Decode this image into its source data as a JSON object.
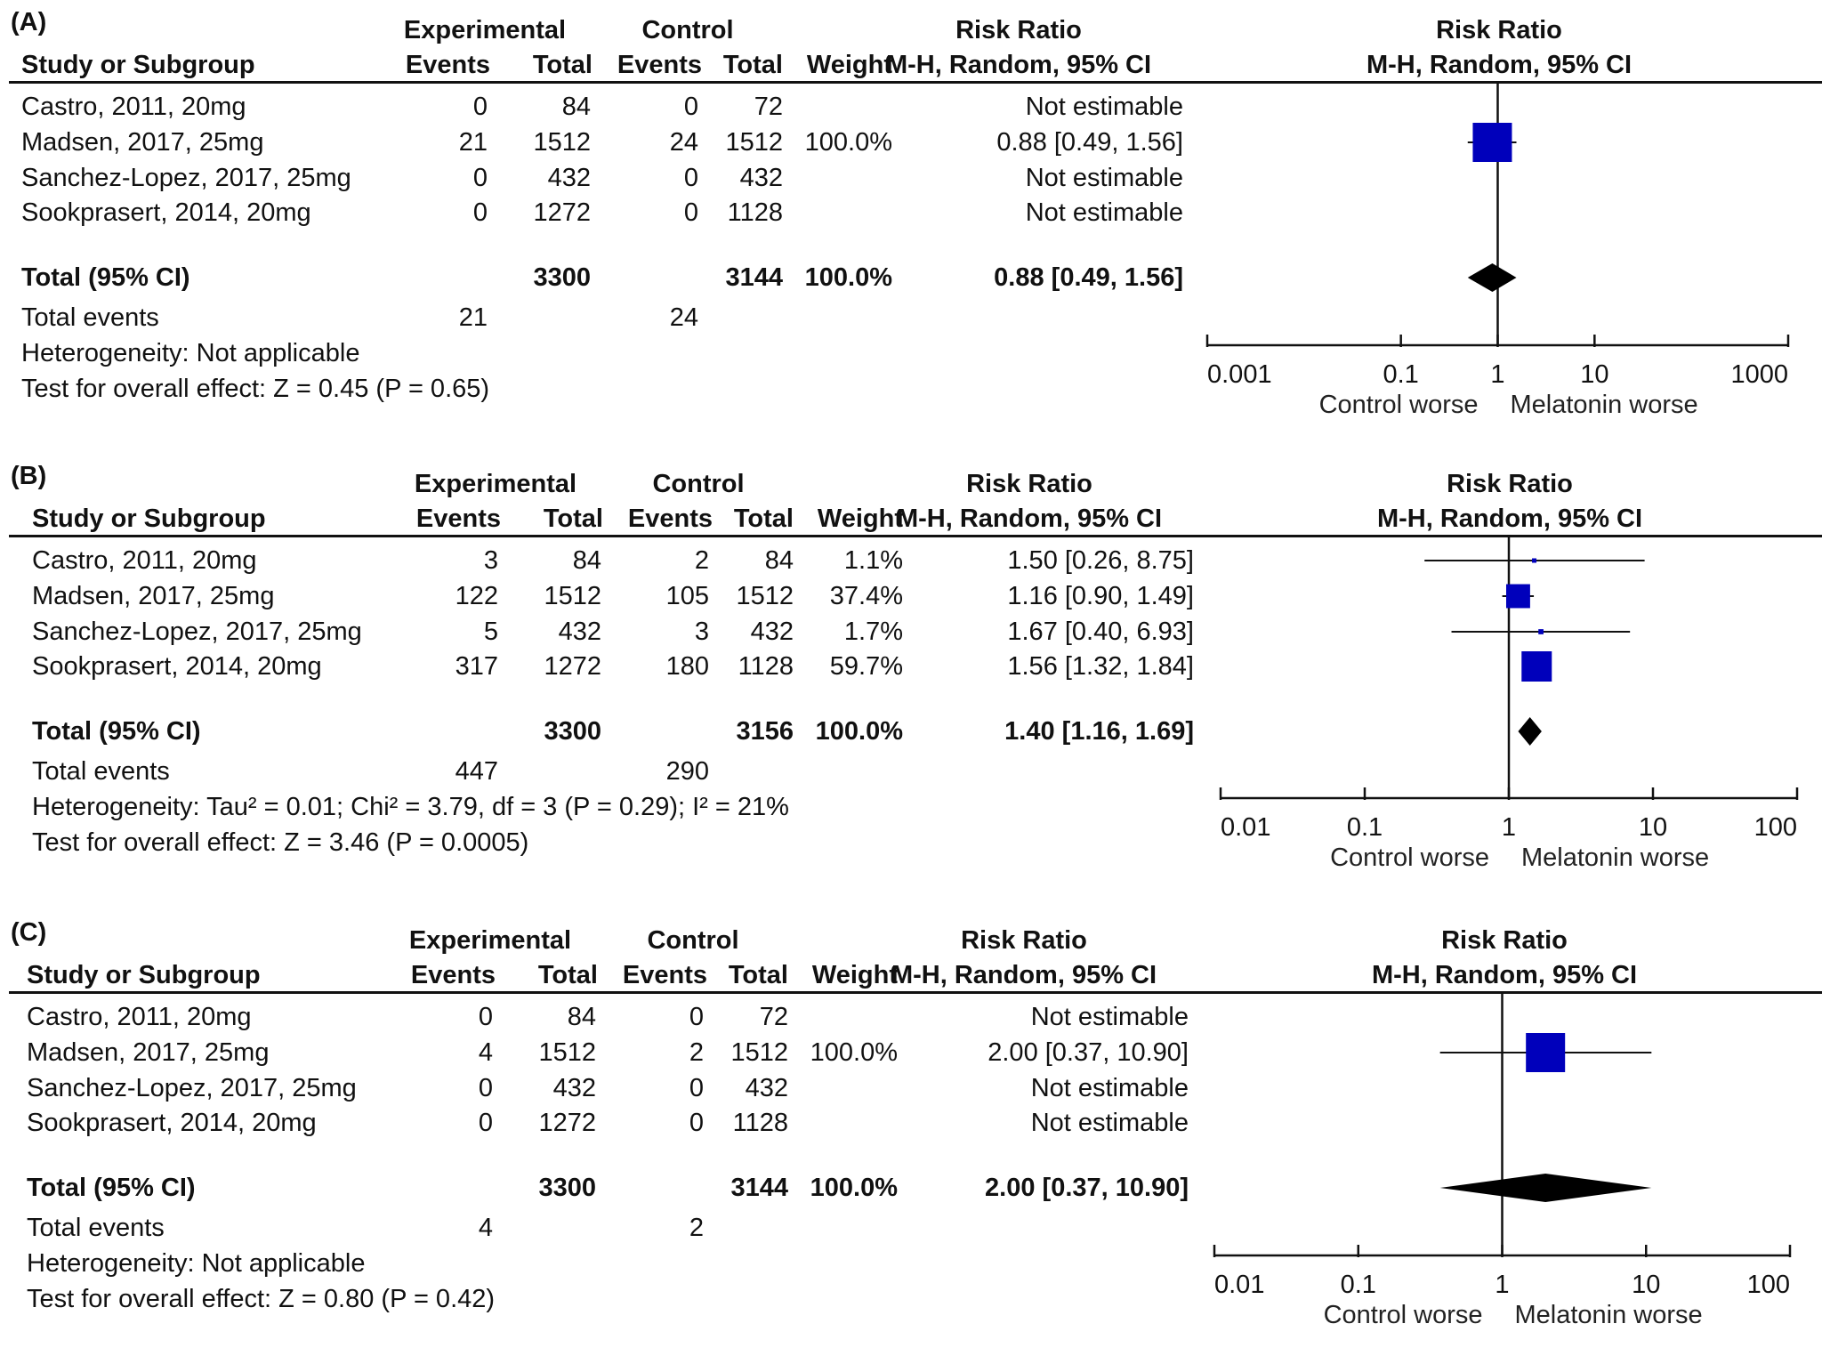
{
  "headers": {
    "group_experimental": "Experimental",
    "group_control": "Control",
    "study_col": "Study or Subgroup",
    "events": "Events",
    "total": "Total",
    "weight": "Weight",
    "rr_title": "Risk Ratio",
    "rr_method": "M-H, Random, 95% CI"
  },
  "footer_left": "Control worse",
  "footer_right": "Melatonin worse",
  "chart_data": [
    {
      "type": "forest",
      "panel": "(A)",
      "title": "Risk Ratio M-H, Random, 95% CI",
      "axis": {
        "scale": "log",
        "ticks": [
          0.001,
          0.1,
          1,
          10,
          1000
        ],
        "tick_labels": [
          "0.001",
          "0.1",
          "1",
          "10",
          "1000"
        ],
        "xlim": [
          0.001,
          1000
        ]
      },
      "studies": [
        {
          "name": "Castro, 2011, 20mg",
          "exp_events": "0",
          "exp_total": "84",
          "ctl_events": "0",
          "ctl_total": "72",
          "weight": "",
          "ci_text": "Not estimable",
          "rr": null,
          "lo": null,
          "hi": null,
          "w": 0
        },
        {
          "name": "Madsen, 2017, 25mg",
          "exp_events": "21",
          "exp_total": "1512",
          "ctl_events": "24",
          "ctl_total": "1512",
          "weight": "100.0%",
          "ci_text": "0.88 [0.49, 1.56]",
          "rr": 0.88,
          "lo": 0.49,
          "hi": 1.56,
          "w": 100.0
        },
        {
          "name": "Sanchez-Lopez, 2017, 25mg",
          "exp_events": "0",
          "exp_total": "432",
          "ctl_events": "0",
          "ctl_total": "432",
          "weight": "",
          "ci_text": "Not estimable",
          "rr": null,
          "lo": null,
          "hi": null,
          "w": 0
        },
        {
          "name": "Sookprasert, 2014, 20mg",
          "exp_events": "0",
          "exp_total": "1272",
          "ctl_events": "0",
          "ctl_total": "1128",
          "weight": "",
          "ci_text": "Not estimable",
          "rr": null,
          "lo": null,
          "hi": null,
          "w": 0
        }
      ],
      "total": {
        "label": "Total (95% CI)",
        "exp_total": "3300",
        "ctl_total": "3144",
        "weight": "100.0%",
        "ci_text": "0.88 [0.49, 1.56]",
        "rr": 0.88,
        "lo": 0.49,
        "hi": 1.56
      },
      "total_events": {
        "label": "Total events",
        "exp": "21",
        "ctl": "24"
      },
      "heterogeneity": "Heterogeneity: Not applicable",
      "overall_effect": "Test for overall effect: Z = 0.45 (P = 0.65)"
    },
    {
      "type": "forest",
      "panel": "(B)",
      "title": "Risk Ratio M-H, Random, 95% CI",
      "axis": {
        "scale": "log",
        "ticks": [
          0.01,
          0.1,
          1,
          10,
          100
        ],
        "tick_labels": [
          "0.01",
          "0.1",
          "1",
          "10",
          "100"
        ],
        "xlim": [
          0.01,
          100
        ]
      },
      "studies": [
        {
          "name": "Castro, 2011, 20mg",
          "exp_events": "3",
          "exp_total": "84",
          "ctl_events": "2",
          "ctl_total": "84",
          "weight": "1.1%",
          "ci_text": "1.50 [0.26, 8.75]",
          "rr": 1.5,
          "lo": 0.26,
          "hi": 8.75,
          "w": 1.1
        },
        {
          "name": "Madsen, 2017, 25mg",
          "exp_events": "122",
          "exp_total": "1512",
          "ctl_events": "105",
          "ctl_total": "1512",
          "weight": "37.4%",
          "ci_text": "1.16 [0.90, 1.49]",
          "rr": 1.16,
          "lo": 0.9,
          "hi": 1.49,
          "w": 37.4
        },
        {
          "name": "Sanchez-Lopez, 2017, 25mg",
          "exp_events": "5",
          "exp_total": "432",
          "ctl_events": "3",
          "ctl_total": "432",
          "weight": "1.7%",
          "ci_text": "1.67 [0.40, 6.93]",
          "rr": 1.67,
          "lo": 0.4,
          "hi": 6.93,
          "w": 1.7
        },
        {
          "name": "Sookprasert, 2014, 20mg",
          "exp_events": "317",
          "exp_total": "1272",
          "ctl_events": "180",
          "ctl_total": "1128",
          "weight": "59.7%",
          "ci_text": "1.56 [1.32, 1.84]",
          "rr": 1.56,
          "lo": 1.32,
          "hi": 1.84,
          "w": 59.7
        }
      ],
      "total": {
        "label": "Total (95% CI)",
        "exp_total": "3300",
        "ctl_total": "3156",
        "weight": "100.0%",
        "ci_text": "1.40 [1.16, 1.69]",
        "rr": 1.4,
        "lo": 1.16,
        "hi": 1.69
      },
      "total_events": {
        "label": "Total events",
        "exp": "447",
        "ctl": "290"
      },
      "heterogeneity": "Heterogeneity: Tau² = 0.01; Chi² = 3.79, df = 3 (P = 0.29); I² = 21%",
      "overall_effect": "Test for overall effect: Z = 3.46 (P = 0.0005)"
    },
    {
      "type": "forest",
      "panel": "(C)",
      "title": "Risk Ratio M-H, Random, 95% CI",
      "axis": {
        "scale": "log",
        "ticks": [
          0.01,
          0.1,
          1,
          10,
          100
        ],
        "tick_labels": [
          "0.01",
          "0.1",
          "1",
          "10",
          "100"
        ],
        "xlim": [
          0.01,
          100
        ]
      },
      "studies": [
        {
          "name": "Castro, 2011, 20mg",
          "exp_events": "0",
          "exp_total": "84",
          "ctl_events": "0",
          "ctl_total": "72",
          "weight": "",
          "ci_text": "Not estimable",
          "rr": null,
          "lo": null,
          "hi": null,
          "w": 0
        },
        {
          "name": "Madsen, 2017, 25mg",
          "exp_events": "4",
          "exp_total": "1512",
          "ctl_events": "2",
          "ctl_total": "1512",
          "weight": "100.0%",
          "ci_text": "2.00 [0.37, 10.90]",
          "rr": 2.0,
          "lo": 0.37,
          "hi": 10.9,
          "w": 100.0
        },
        {
          "name": "Sanchez-Lopez, 2017, 25mg",
          "exp_events": "0",
          "exp_total": "432",
          "ctl_events": "0",
          "ctl_total": "432",
          "weight": "",
          "ci_text": "Not estimable",
          "rr": null,
          "lo": null,
          "hi": null,
          "w": 0
        },
        {
          "name": "Sookprasert, 2014, 20mg",
          "exp_events": "0",
          "exp_total": "1272",
          "ctl_events": "0",
          "ctl_total": "1128",
          "weight": "",
          "ci_text": "Not estimable",
          "rr": null,
          "lo": null,
          "hi": null,
          "w": 0
        }
      ],
      "total": {
        "label": "Total (95% CI)",
        "exp_total": "3300",
        "ctl_total": "3144",
        "weight": "100.0%",
        "ci_text": "2.00 [0.37, 10.90]",
        "rr": 2.0,
        "lo": 0.37,
        "hi": 10.9
      },
      "total_events": {
        "label": "Total events",
        "exp": "4",
        "ctl": "2"
      },
      "heterogeneity": "Heterogeneity: Not applicable",
      "overall_effect": "Test for overall effect: Z = 0.80 (P = 0.42)"
    }
  ],
  "colors": {
    "marker": "#0000bb",
    "diamond": "#000000",
    "text": "#111111"
  }
}
